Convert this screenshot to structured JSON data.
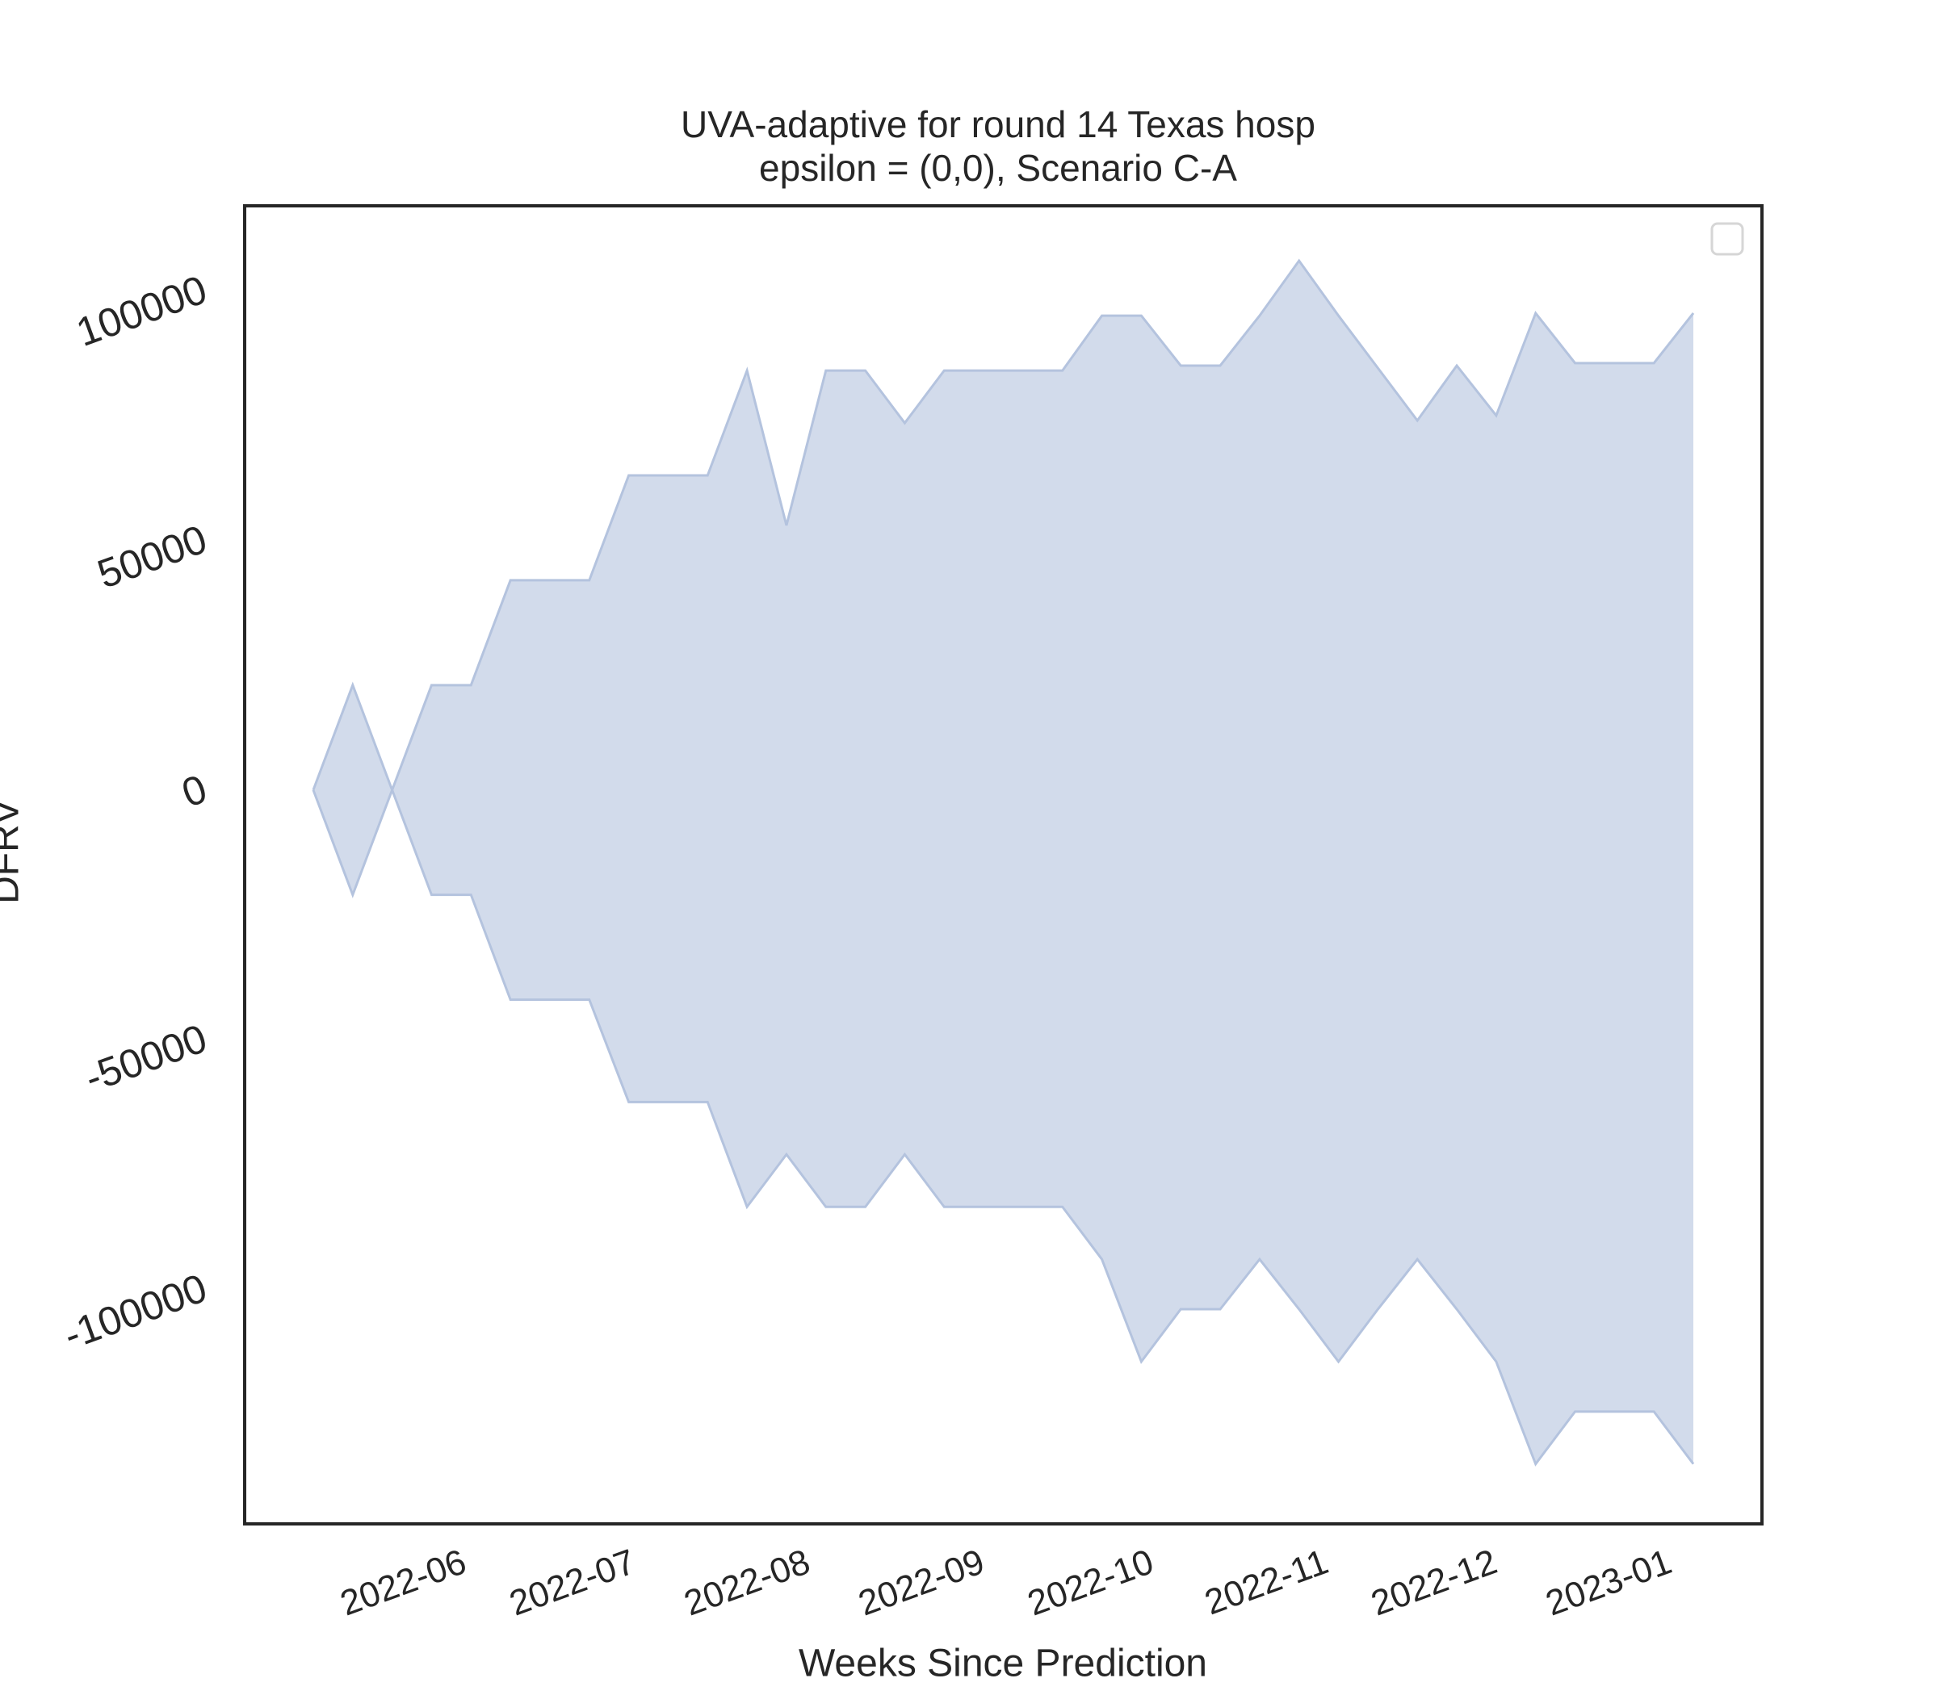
{
  "chart_data": {
    "type": "area",
    "title": "UVA-adaptive for round 14 Texas hosp",
    "subtitle": "epsilon = (0,0), Scenario C-A",
    "xlabel": "Weeks Since Prediction",
    "ylabel": "DFRV",
    "x": [
      0,
      1,
      2,
      3,
      4,
      5,
      6,
      7,
      8,
      9,
      10,
      11,
      12,
      13,
      14,
      15,
      16,
      17,
      18,
      19,
      20,
      21,
      22,
      23,
      24,
      25,
      26,
      27,
      28,
      29,
      30,
      31,
      32,
      33,
      34,
      35
    ],
    "upper": [
      0,
      21000,
      0,
      21000,
      21000,
      42000,
      42000,
      42000,
      63000,
      63000,
      63000,
      84000,
      53000,
      84000,
      84000,
      73500,
      84000,
      84000,
      84000,
      84000,
      95000,
      95000,
      85000,
      85000,
      95000,
      106000,
      95000,
      84500,
      74000,
      85000,
      75000,
      95500,
      85500,
      85500,
      85500,
      95500
    ],
    "lower": [
      0,
      -21000,
      0,
      -21000,
      -21000,
      -42000,
      -42000,
      -42000,
      -62500,
      -62500,
      -62500,
      -83500,
      -73000,
      -83500,
      -83500,
      -73000,
      -83500,
      -83500,
      -83500,
      -83500,
      -94000,
      -114500,
      -104000,
      -104000,
      -94000,
      -104000,
      -114500,
      -104000,
      -94000,
      -104000,
      -114500,
      -135000,
      -124500,
      -124500,
      -124500,
      -135000
    ],
    "color": "#d2dbeb",
    "edge_color": "#b4c3de",
    "xlim": [
      -1.74,
      36.74
    ],
    "ylim": [
      -147000,
      117000
    ],
    "xticks": [
      {
        "value": 3.57,
        "label": "2022-06"
      },
      {
        "value": 7.86,
        "label": "2022-07"
      },
      {
        "value": 12.29,
        "label": "2022-08"
      },
      {
        "value": 16.71,
        "label": "2022-09"
      },
      {
        "value": 21,
        "label": "2022-10"
      },
      {
        "value": 25.43,
        "label": "2022-11"
      },
      {
        "value": 29.71,
        "label": "2022-12"
      },
      {
        "value": 34.14,
        "label": "2023-01"
      }
    ],
    "yticks": [
      -100000,
      -50000,
      0,
      50000,
      100000
    ]
  }
}
